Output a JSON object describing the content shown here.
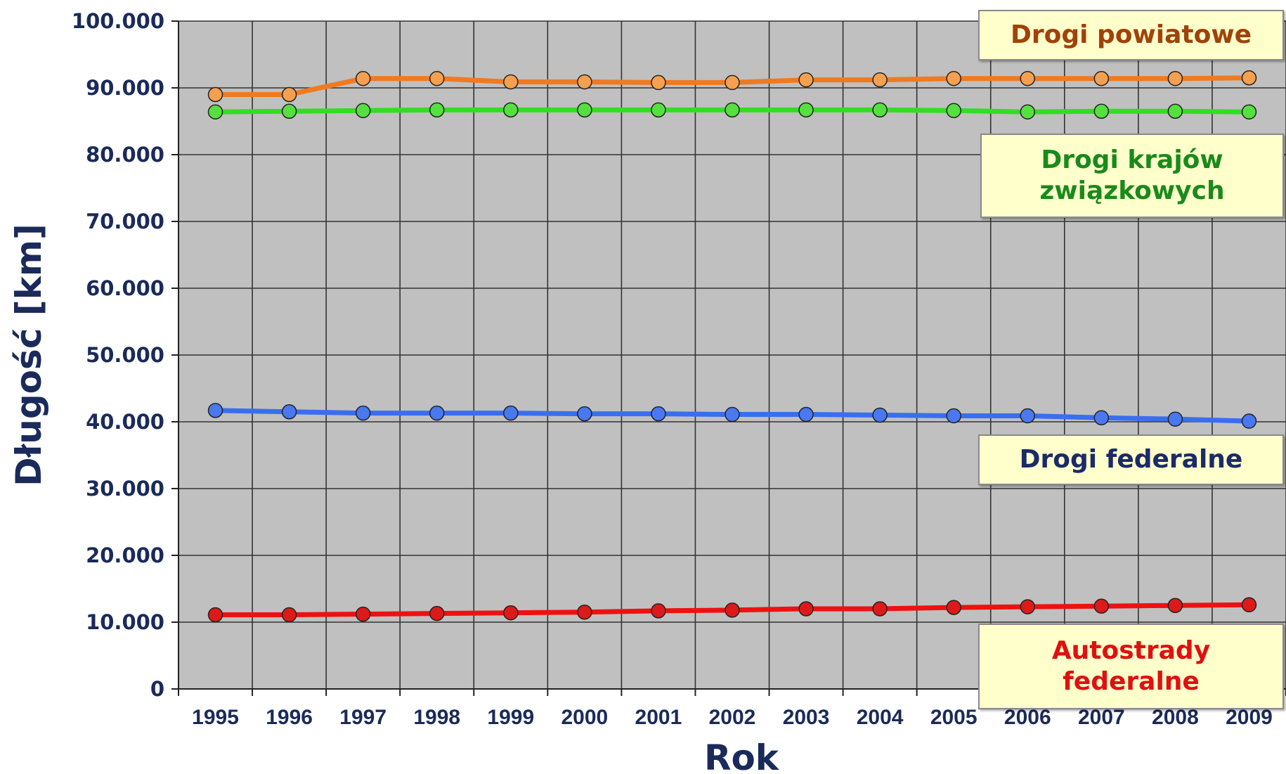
{
  "chart_data": {
    "type": "line",
    "xlabel": "Rok",
    "ylabel": "Długość [km]",
    "x": [
      "1995",
      "1996",
      "1997",
      "1998",
      "1999",
      "2000",
      "2001",
      "2002",
      "2003",
      "2004",
      "2005",
      "2006",
      "2007",
      "2008",
      "2009"
    ],
    "ylim": [
      0,
      100000
    ],
    "yticks": [
      0,
      10000,
      20000,
      30000,
      40000,
      50000,
      60000,
      70000,
      80000,
      90000,
      100000
    ],
    "ytick_labels": [
      "0",
      "10.000",
      "20.000",
      "30.000",
      "40.000",
      "50.000",
      "60.000",
      "70.000",
      "80.000",
      "90.000",
      "100.000"
    ],
    "grid": true,
    "series": [
      {
        "name": "Drogi powiatowe",
        "color": "#f07a20",
        "marker_color": "#f5a050",
        "text_color": "#a0420a",
        "values": [
          89000,
          89000,
          91400,
          91400,
          90900,
          90900,
          90800,
          90800,
          91200,
          91200,
          91400,
          91400,
          91400,
          91400,
          91500
        ]
      },
      {
        "name": "Drogi krajów\nzwiązkowych",
        "color": "#33dd22",
        "marker_color": "#55e040",
        "text_color": "#1a8a1a",
        "values": [
          86400,
          86500,
          86600,
          86700,
          86700,
          86700,
          86700,
          86700,
          86700,
          86700,
          86600,
          86400,
          86500,
          86500,
          86400
        ]
      },
      {
        "name": "Drogi federalne",
        "color": "#3a6ef0",
        "marker_color": "#4a78f0",
        "text_color": "#1a2a6a",
        "values": [
          41700,
          41500,
          41300,
          41300,
          41300,
          41200,
          41200,
          41100,
          41100,
          41000,
          40900,
          40900,
          40600,
          40400,
          40100
        ]
      },
      {
        "name": "Autostrady\nfederalne",
        "color": "#ee1111",
        "marker_color": "#dd1a1a",
        "text_color": "#e01010",
        "values": [
          11100,
          11100,
          11200,
          11300,
          11400,
          11500,
          11700,
          11800,
          12000,
          12000,
          12200,
          12300,
          12400,
          12500,
          12600
        ]
      }
    ]
  }
}
